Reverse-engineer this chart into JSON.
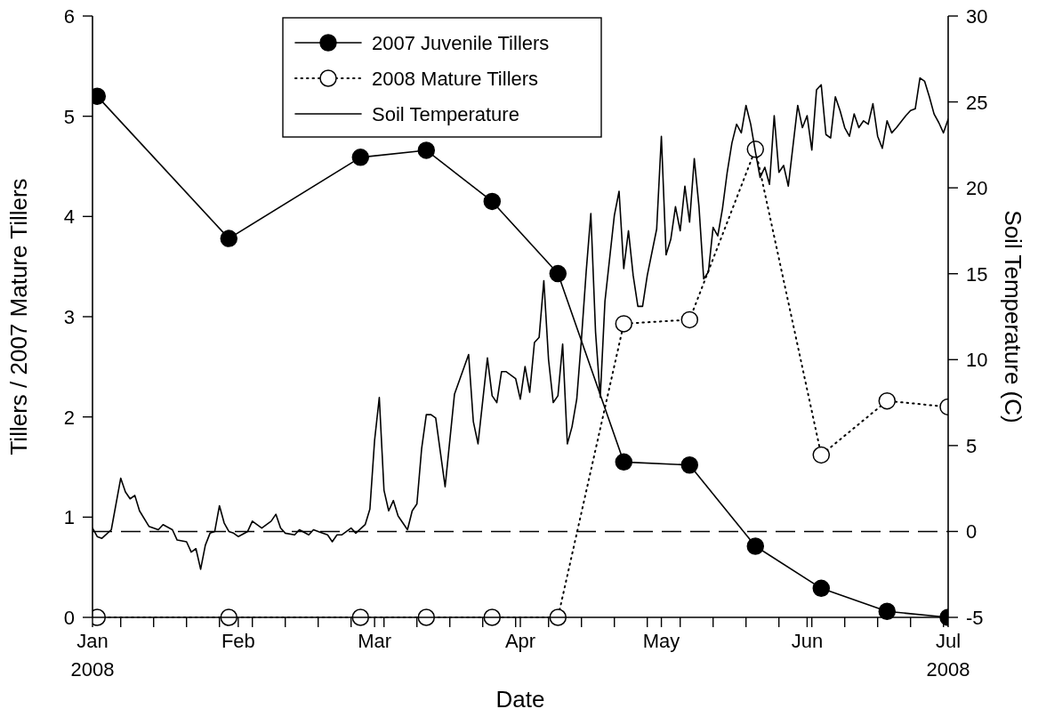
{
  "chart_data": {
    "type": "line",
    "xlabel": "Date",
    "ylabel": "Tillers / 2007 Mature Tillers",
    "y2label": "Soil Temperature (C)",
    "xlim": [
      "2008-01-01",
      "2008-07-01"
    ],
    "xticks": [
      {
        "value": "2008-01-01",
        "label": "Jan\n2008"
      },
      {
        "value": "2008-02-01",
        "label": "Feb"
      },
      {
        "value": "2008-03-01",
        "label": "Mar"
      },
      {
        "value": "2008-04-01",
        "label": "Apr"
      },
      {
        "value": "2008-05-01",
        "label": "May"
      },
      {
        "value": "2008-06-01",
        "label": "Jun"
      },
      {
        "value": "2008-07-01",
        "label": "Jul\n2008"
      },
      {
        "value": "2008-01-07",
        "label": null
      },
      {
        "value": "2008-01-14",
        "label": null
      },
      {
        "value": "2008-01-21",
        "label": null
      },
      {
        "value": "2008-01-28",
        "label": null
      },
      {
        "value": "2008-02-04",
        "label": null
      },
      {
        "value": "2008-02-11",
        "label": null
      },
      {
        "value": "2008-02-18",
        "label": null
      },
      {
        "value": "2008-02-25",
        "label": null
      },
      {
        "value": "2008-03-03",
        "label": null
      },
      {
        "value": "2008-03-10",
        "label": null
      },
      {
        "value": "2008-03-17",
        "label": null
      },
      {
        "value": "2008-03-24",
        "label": null
      },
      {
        "value": "2008-03-31",
        "label": null
      },
      {
        "value": "2008-04-07",
        "label": null
      },
      {
        "value": "2008-04-14",
        "label": null
      },
      {
        "value": "2008-04-21",
        "label": null
      },
      {
        "value": "2008-04-28",
        "label": null
      },
      {
        "value": "2008-05-05",
        "label": null
      },
      {
        "value": "2008-05-12",
        "label": null
      },
      {
        "value": "2008-05-19",
        "label": null
      },
      {
        "value": "2008-05-26",
        "label": null
      },
      {
        "value": "2008-06-02",
        "label": null
      },
      {
        "value": "2008-06-09",
        "label": null
      },
      {
        "value": "2008-06-16",
        "label": null
      },
      {
        "value": "2008-06-23",
        "label": null
      },
      {
        "value": "2008-06-30",
        "label": null
      }
    ],
    "ylim": [
      0,
      6
    ],
    "yticks": [
      0,
      1,
      2,
      3,
      4,
      5,
      6
    ],
    "y2lim": [
      -5,
      30
    ],
    "y2ticks": [
      -5,
      0,
      5,
      10,
      15,
      20,
      25,
      30
    ],
    "grid": false,
    "legend": "top",
    "ref_lines": [
      {
        "axis": "y2",
        "value": 0,
        "line_style": "dashed",
        "color": "#000000"
      }
    ],
    "series": [
      {
        "name": "2007 Juvenile Tillers",
        "color": "#000000",
        "marker": "circle",
        "line_style": "solid",
        "x": [
          "2008-01-02",
          "2008-01-30",
          "2008-02-27",
          "2008-03-12",
          "2008-03-26",
          "2008-04-09",
          "2008-04-23",
          "2008-05-07",
          "2008-05-21",
          "2008-06-04",
          "2008-06-18",
          "2008-07-01"
        ],
        "values": [
          5.2,
          3.78,
          4.59,
          4.66,
          4.15,
          3.43,
          1.55,
          1.52,
          0.71,
          0.29,
          0.06,
          0
        ]
      },
      {
        "name": "2008 Mature Tillers",
        "color": "#000000",
        "marker": "circle",
        "line_style": "dotted",
        "x": [
          "2008-01-02",
          "2008-01-30",
          "2008-02-27",
          "2008-03-12",
          "2008-03-26",
          "2008-04-09",
          "2008-04-23",
          "2008-05-07",
          "2008-05-21",
          "2008-06-04",
          "2008-06-18",
          "2008-07-01"
        ],
        "values": [
          0,
          0,
          0,
          0,
          0,
          0,
          2.93,
          2.97,
          4.67,
          1.62,
          2.16,
          2.1
        ]
      },
      {
        "name": "Soil Temperature",
        "color": "#000000",
        "marker": "none",
        "line_style": "solid",
        "axis": "y2",
        "x": [
          "2008-01-01",
          "2008-01-02",
          "2008-01-03",
          "2008-01-05",
          "2008-01-07",
          "2008-01-08",
          "2008-01-09",
          "2008-01-10",
          "2008-01-11",
          "2008-01-13",
          "2008-01-15",
          "2008-01-16",
          "2008-01-18",
          "2008-01-19",
          "2008-01-21",
          "2008-01-22",
          "2008-01-23",
          "2008-01-24",
          "2008-01-25",
          "2008-01-26",
          "2008-01-27",
          "2008-01-28",
          "2008-01-29",
          "2008-01-30",
          "2008-01-31",
          "2008-02-01",
          "2008-02-03",
          "2008-02-04",
          "2008-02-06",
          "2008-02-08",
          "2008-02-09",
          "2008-02-10",
          "2008-02-11",
          "2008-02-13",
          "2008-02-14",
          "2008-02-16",
          "2008-02-17",
          "2008-02-18",
          "2008-02-20",
          "2008-02-21",
          "2008-02-22",
          "2008-02-23",
          "2008-02-25",
          "2008-02-26",
          "2008-02-28",
          "2008-02-29",
          "2008-03-01",
          "2008-03-02",
          "2008-03-03",
          "2008-03-04",
          "2008-03-05",
          "2008-03-06",
          "2008-03-08",
          "2008-03-09",
          "2008-03-10",
          "2008-03-11",
          "2008-03-12",
          "2008-03-13",
          "2008-03-14",
          "2008-03-16",
          "2008-03-18",
          "2008-03-21",
          "2008-03-22",
          "2008-03-23",
          "2008-03-25",
          "2008-03-26",
          "2008-03-27",
          "2008-03-28",
          "2008-03-29",
          "2008-03-31",
          "2008-04-01",
          "2008-04-02",
          "2008-04-03",
          "2008-04-04",
          "2008-04-05",
          "2008-04-06",
          "2008-04-07",
          "2008-04-08",
          "2008-04-09",
          "2008-04-10",
          "2008-04-11",
          "2008-04-12",
          "2008-04-13",
          "2008-04-14",
          "2008-04-15",
          "2008-04-16",
          "2008-04-17",
          "2008-04-18",
          "2008-04-19",
          "2008-04-21",
          "2008-04-22",
          "2008-04-23",
          "2008-04-24",
          "2008-04-25",
          "2008-04-26",
          "2008-04-27",
          "2008-04-28",
          "2008-04-30",
          "2008-05-01",
          "2008-05-02",
          "2008-05-03",
          "2008-05-04",
          "2008-05-05",
          "2008-05-06",
          "2008-05-07",
          "2008-05-08",
          "2008-05-09",
          "2008-05-10",
          "2008-05-11",
          "2008-05-12",
          "2008-05-13",
          "2008-05-14",
          "2008-05-15",
          "2008-05-16",
          "2008-05-17",
          "2008-05-18",
          "2008-05-19",
          "2008-05-20",
          "2008-05-21",
          "2008-05-22",
          "2008-05-23",
          "2008-05-24",
          "2008-05-25",
          "2008-05-26",
          "2008-05-27",
          "2008-05-28",
          "2008-05-30",
          "2008-05-31",
          "2008-06-01",
          "2008-06-02",
          "2008-06-03",
          "2008-06-04",
          "2008-06-05",
          "2008-06-06",
          "2008-06-07",
          "2008-06-08",
          "2008-06-09",
          "2008-06-10",
          "2008-06-11",
          "2008-06-12",
          "2008-06-13",
          "2008-06-14",
          "2008-06-15",
          "2008-06-16",
          "2008-06-17",
          "2008-06-18",
          "2008-06-19",
          "2008-06-20",
          "2008-06-22",
          "2008-06-23",
          "2008-06-24",
          "2008-06-25",
          "2008-06-26",
          "2008-06-27",
          "2008-06-28",
          "2008-06-29",
          "2008-06-30",
          "2008-07-01"
        ],
        "values": [
          0.2,
          -0.3,
          -0.4,
          0.1,
          3.1,
          2.3,
          1.9,
          2.1,
          1.2,
          0.3,
          0.1,
          0.4,
          0.1,
          -0.5,
          -0.6,
          -1.2,
          -1.0,
          -2.2,
          -0.8,
          -0.1,
          0,
          1.5,
          0.5,
          0,
          -0.1,
          -0.3,
          0,
          0.6,
          0.2,
          0.6,
          1.0,
          0.2,
          -0.1,
          -0.2,
          0.1,
          -0.2,
          0.1,
          0,
          -0.2,
          -0.6,
          -0.2,
          -0.2,
          0.2,
          -0.1,
          0.4,
          1.3,
          5.3,
          7.8,
          2.4,
          1.2,
          1.8,
          0.9,
          0.1,
          1.2,
          1.6,
          4.8,
          6.8,
          6.8,
          6.6,
          2.6,
          8.0,
          10.3,
          6.4,
          5.1,
          10.1,
          7.9,
          7.5,
          9.3,
          9.3,
          8.9,
          7.7,
          9.6,
          8.1,
          11.0,
          11.3,
          14.6,
          10.0,
          7.5,
          7.9,
          10.9,
          5.1,
          6.1,
          7.7,
          11.2,
          15.1,
          18.5,
          11.6,
          7.8,
          13.4,
          18.4,
          19.8,
          15.3,
          17.5,
          14.9,
          13.1,
          13.1,
          14.9,
          17.6,
          23.0,
          16.1,
          17.0,
          18.9,
          17.5,
          20.1,
          18.0,
          21.7,
          18.9,
          14.7,
          15.1,
          17.7,
          17.2,
          18.8,
          20.9,
          22.6,
          23.7,
          23.2,
          24.8,
          23.7,
          22.1,
          20.6,
          21.2,
          20.2,
          24.2,
          20.9,
          21.3,
          20.1,
          24.8,
          23.5,
          24.2,
          22.2,
          25.7,
          26.0,
          23.1,
          22.9,
          25.3,
          24.5,
          23.5,
          23.0,
          24.3,
          23.5,
          23.9,
          23.7,
          24.9,
          23.0,
          22.3,
          23.9,
          23.2,
          23.5,
          24.2,
          24.5,
          24.6,
          26.4,
          26.2,
          25.3,
          24.3,
          23.8,
          23.2,
          24.0
        ]
      }
    ]
  }
}
